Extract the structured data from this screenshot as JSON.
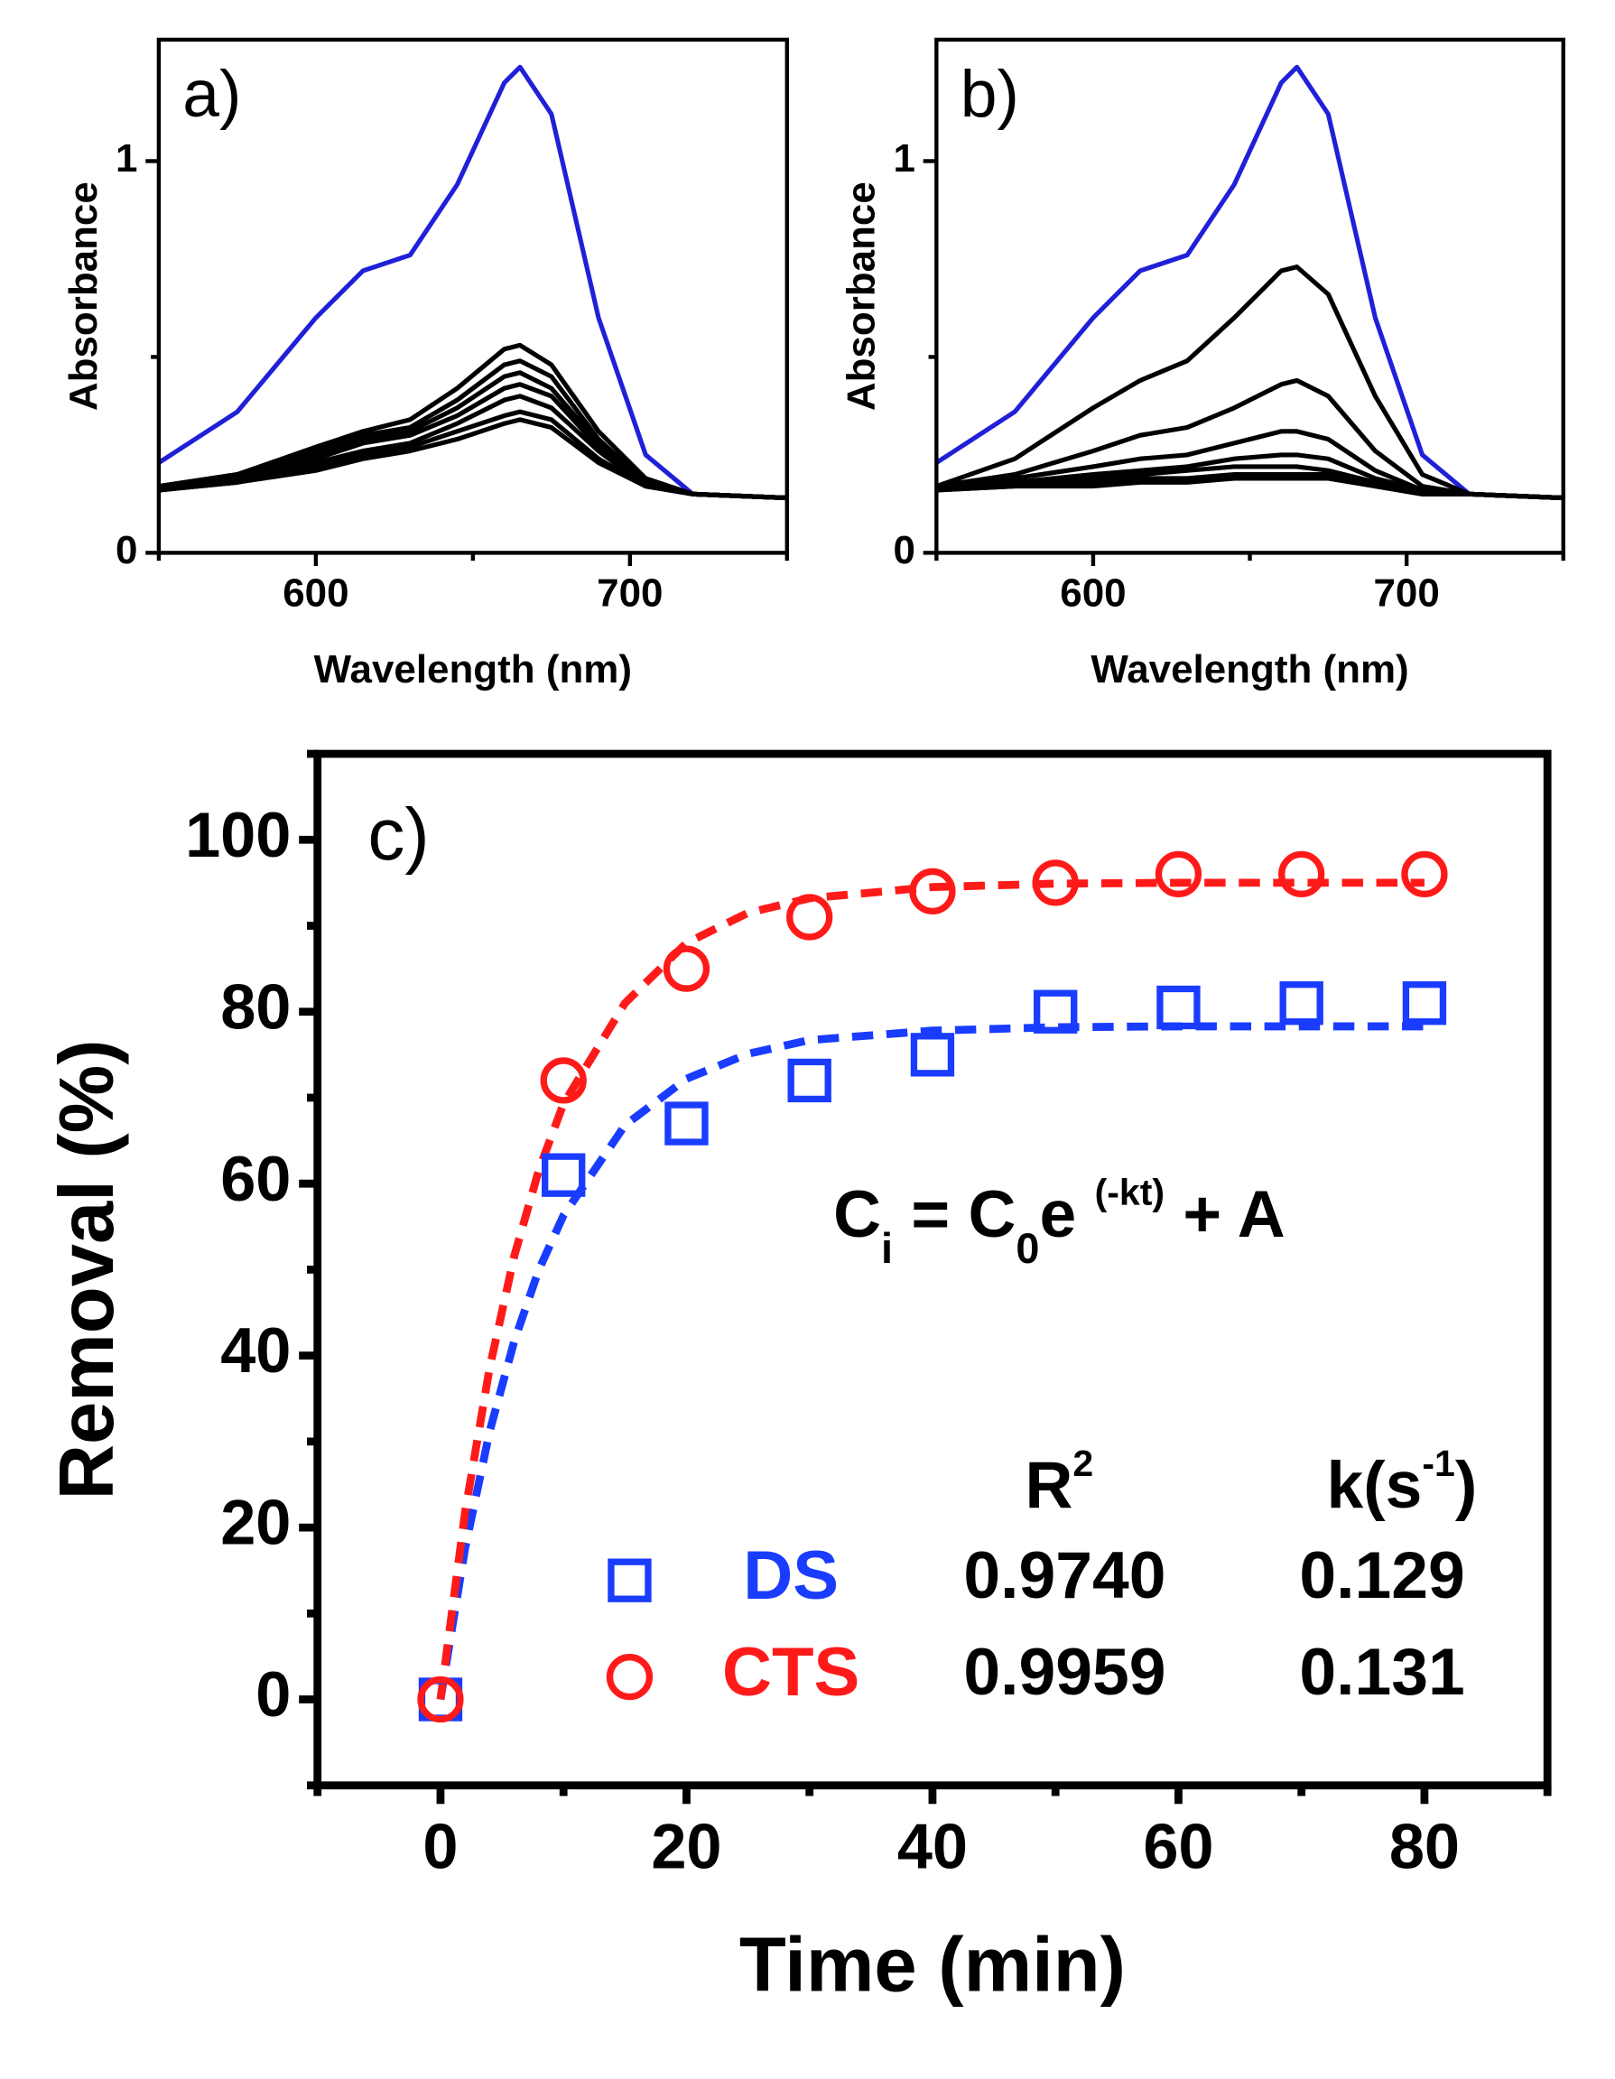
{
  "chart_data": [
    {
      "type": "line",
      "title": "a)",
      "xlabel": "Wavelength (nm)",
      "ylabel": "Absorbance",
      "xlim": [
        550,
        750
      ],
      "xticks": [
        600,
        700
      ],
      "xminorticks": [
        550,
        650,
        750
      ],
      "ylim": [
        0,
        1.31
      ],
      "yticks": [
        0,
        1
      ],
      "yminorticks": [
        0.5
      ],
      "x": [
        550,
        575,
        600,
        615,
        630,
        645,
        660,
        665,
        675,
        690,
        705,
        720,
        750
      ],
      "series": [
        {
          "color": "#2020d8",
          "values": [
            0.23,
            0.36,
            0.6,
            0.72,
            0.76,
            0.94,
            1.2,
            1.24,
            1.12,
            0.6,
            0.25,
            0.15,
            0.14
          ]
        },
        {
          "color": "#000000",
          "values": [
            0.17,
            0.2,
            0.27,
            0.31,
            0.34,
            0.42,
            0.52,
            0.53,
            0.48,
            0.31,
            0.19,
            0.15,
            0.14
          ]
        },
        {
          "color": "#000000",
          "values": [
            0.17,
            0.2,
            0.26,
            0.3,
            0.32,
            0.39,
            0.48,
            0.49,
            0.45,
            0.29,
            0.18,
            0.15,
            0.14
          ]
        },
        {
          "color": "#000000",
          "values": [
            0.16,
            0.19,
            0.25,
            0.29,
            0.31,
            0.37,
            0.45,
            0.46,
            0.42,
            0.28,
            0.18,
            0.15,
            0.14
          ]
        },
        {
          "color": "#000000",
          "values": [
            0.16,
            0.19,
            0.24,
            0.28,
            0.3,
            0.35,
            0.42,
            0.43,
            0.4,
            0.27,
            0.18,
            0.15,
            0.14
          ]
        },
        {
          "color": "#000000",
          "values": [
            0.16,
            0.18,
            0.23,
            0.26,
            0.28,
            0.33,
            0.39,
            0.4,
            0.37,
            0.26,
            0.17,
            0.15,
            0.14
          ]
        },
        {
          "color": "#000000",
          "values": [
            0.16,
            0.18,
            0.22,
            0.25,
            0.27,
            0.31,
            0.35,
            0.36,
            0.34,
            0.24,
            0.17,
            0.15,
            0.14
          ]
        },
        {
          "color": "#000000",
          "values": [
            0.16,
            0.18,
            0.21,
            0.24,
            0.26,
            0.29,
            0.33,
            0.34,
            0.32,
            0.23,
            0.17,
            0.15,
            0.14
          ]
        }
      ]
    },
    {
      "type": "line",
      "title": "b)",
      "xlabel": "Wavelength (nm)",
      "ylabel": "Absorbance",
      "xlim": [
        550,
        750
      ],
      "xticks": [
        600,
        700
      ],
      "xminorticks": [
        550,
        650,
        750
      ],
      "ylim": [
        0,
        1.31
      ],
      "yticks": [
        0,
        1
      ],
      "yminorticks": [
        0.5
      ],
      "x": [
        550,
        575,
        600,
        615,
        630,
        645,
        660,
        665,
        675,
        690,
        705,
        720,
        750
      ],
      "series": [
        {
          "color": "#2020d8",
          "values": [
            0.23,
            0.36,
            0.6,
            0.72,
            0.76,
            0.94,
            1.2,
            1.24,
            1.12,
            0.6,
            0.25,
            0.15,
            0.14
          ]
        },
        {
          "color": "#000000",
          "values": [
            0.17,
            0.24,
            0.37,
            0.44,
            0.49,
            0.6,
            0.72,
            0.73,
            0.66,
            0.4,
            0.2,
            0.15,
            0.14
          ]
        },
        {
          "color": "#000000",
          "values": [
            0.17,
            0.2,
            0.26,
            0.3,
            0.32,
            0.37,
            0.43,
            0.44,
            0.4,
            0.26,
            0.17,
            0.15,
            0.14
          ]
        },
        {
          "color": "#000000",
          "values": [
            0.17,
            0.19,
            0.22,
            0.24,
            0.25,
            0.28,
            0.31,
            0.31,
            0.29,
            0.21,
            0.16,
            0.15,
            0.14
          ]
        },
        {
          "color": "#000000",
          "values": [
            0.17,
            0.18,
            0.2,
            0.21,
            0.22,
            0.24,
            0.25,
            0.25,
            0.24,
            0.19,
            0.16,
            0.15,
            0.14
          ]
        },
        {
          "color": "#000000",
          "values": [
            0.17,
            0.18,
            0.19,
            0.2,
            0.21,
            0.22,
            0.22,
            0.22,
            0.21,
            0.18,
            0.16,
            0.15,
            0.14
          ]
        },
        {
          "color": "#000000",
          "values": [
            0.16,
            0.17,
            0.18,
            0.19,
            0.19,
            0.2,
            0.2,
            0.2,
            0.2,
            0.17,
            0.15,
            0.15,
            0.14
          ]
        },
        {
          "color": "#000000",
          "values": [
            0.16,
            0.17,
            0.17,
            0.18,
            0.18,
            0.19,
            0.19,
            0.19,
            0.19,
            0.17,
            0.15,
            0.15,
            0.14
          ]
        }
      ]
    },
    {
      "type": "scatter",
      "title": "c)",
      "xlabel": "Time (min)",
      "ylabel": "Removal (%)",
      "xlim": [
        -10,
        90
      ],
      "xticks": [
        0,
        20,
        40,
        60,
        80
      ],
      "xminorticks": [
        -10,
        10,
        30,
        50,
        70,
        90
      ],
      "ylim": [
        -10,
        110
      ],
      "yticks": [
        0,
        20,
        40,
        60,
        80,
        100
      ],
      "yminorticks": [
        -10,
        10,
        30,
        50,
        70,
        90,
        110
      ],
      "x": [
        0,
        10,
        20,
        30,
        40,
        50,
        60,
        70,
        80
      ],
      "series": [
        {
          "name": "DS",
          "color": "#1a3cff",
          "marker": "square",
          "values": [
            0,
            61,
            67,
            72,
            75,
            80,
            80.5,
            81,
            81
          ]
        },
        {
          "name": "CTS",
          "color": "#ff1a1a",
          "marker": "circle",
          "values": [
            0,
            72,
            85,
            91,
            94,
            95,
            96,
            96,
            96
          ]
        }
      ],
      "fits": [
        {
          "color": "#1a3cff",
          "x": [
            0,
            2,
            4,
            6,
            8,
            10,
            15,
            20,
            25,
            30,
            40,
            50,
            60,
            70,
            80
          ],
          "values": [
            0,
            17.6,
            31.2,
            41.7,
            50,
            56.3,
            66.8,
            72.2,
            75.1,
            76.7,
            77.8,
            78.2,
            78.3,
            78.3,
            78.3
          ]
        },
        {
          "color": "#ff1a1a",
          "x": [
            0,
            2,
            4,
            6,
            8,
            10,
            15,
            20,
            25,
            30,
            40,
            50,
            60,
            70,
            80
          ],
          "values": [
            0,
            21.8,
            38.6,
            51.6,
            61.6,
            69.3,
            81,
            88,
            91.5,
            93.2,
            94.5,
            94.9,
            95,
            95,
            95
          ]
        }
      ],
      "equation": [
        "C",
        "i",
        " = C",
        "0",
        "e ",
        "(-kt)",
        " + A"
      ],
      "fit_table": {
        "header_r2": [
          "R",
          "2"
        ],
        "header_k": [
          "k(s",
          "-1",
          ")"
        ],
        "r2": {
          "values": [
            0.974,
            0.9959
          ],
          "value_labels": [
            "0.9740",
            "0.9959"
          ]
        },
        "k": [
          0.129,
          0.131
        ]
      }
    }
  ]
}
